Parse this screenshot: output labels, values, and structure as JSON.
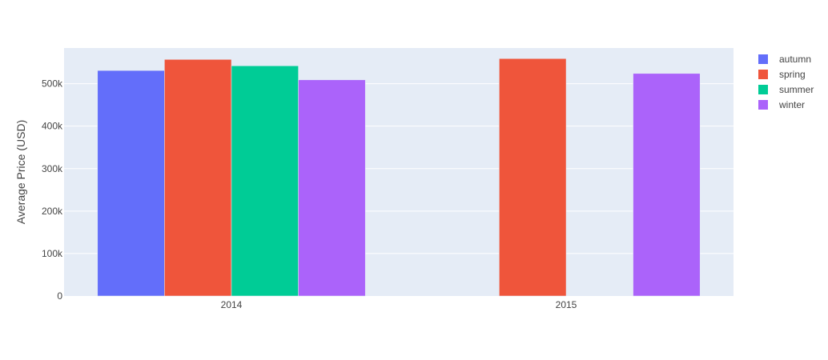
{
  "chart_data": {
    "type": "bar",
    "barmode": "group",
    "categories": [
      "2014",
      "2015"
    ],
    "series": [
      {
        "name": "autumn",
        "color": "#636efa",
        "values": [
          531000,
          null
        ]
      },
      {
        "name": "spring",
        "color": "#ef553b",
        "values": [
          557000,
          559000
        ]
      },
      {
        "name": "summer",
        "color": "#00cc96",
        "values": [
          542000,
          null
        ]
      },
      {
        "name": "winter",
        "color": "#ab63fa",
        "values": [
          509000,
          524000
        ]
      }
    ],
    "ylabel": "Average Price (USD)",
    "xlabel": "",
    "ylim": [
      0,
      584000
    ],
    "yticks": [
      {
        "value": 0,
        "label": "0"
      },
      {
        "value": 100000,
        "label": "100k"
      },
      {
        "value": 200000,
        "label": "200k"
      },
      {
        "value": 300000,
        "label": "300k"
      },
      {
        "value": 400000,
        "label": "400k"
      },
      {
        "value": 500000,
        "label": "500k"
      }
    ],
    "grid": true,
    "legend_position": "top-right",
    "plot_background": "#e5ecf6"
  }
}
